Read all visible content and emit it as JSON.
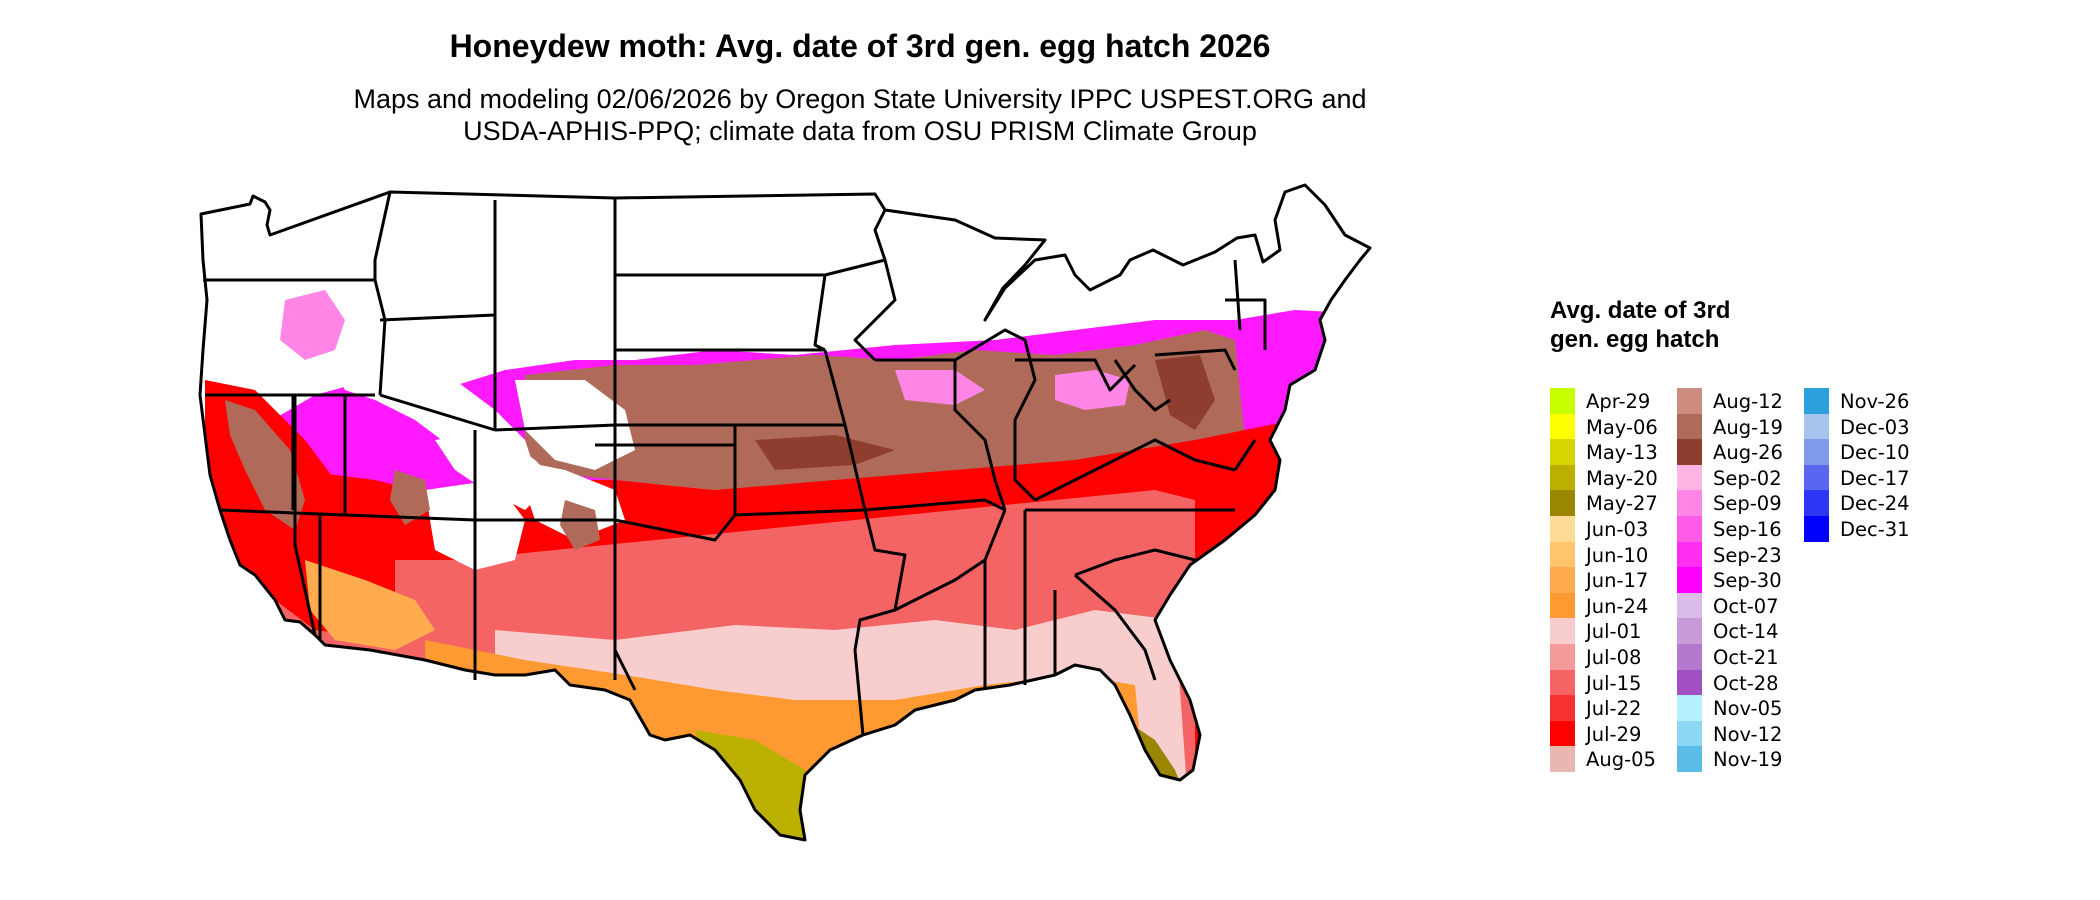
{
  "title": "Honeydew moth: Avg. date of 3rd gen. egg hatch 2026",
  "subtitle_line1": "Maps and modeling 02/06/2026 by Oregon State University IPPC USPEST.ORG and",
  "subtitle_line2": "USDA-APHIS-PPQ; climate data from OSU PRISM Climate Group",
  "legend": {
    "title": "Avg. date of 3rd gen. egg hatch",
    "items": [
      {
        "label": "Apr-29",
        "color": "#c8ff00"
      },
      {
        "label": "May-06",
        "color": "#ffff00"
      },
      {
        "label": "May-13",
        "color": "#d8d400"
      },
      {
        "label": "May-20",
        "color": "#bbaf00"
      },
      {
        "label": "May-27",
        "color": "#9a8600"
      },
      {
        "label": "Jun-03",
        "color": "#ffdc96"
      },
      {
        "label": "Jun-10",
        "color": "#ffc46c"
      },
      {
        "label": "Jun-17",
        "color": "#ffac4e"
      },
      {
        "label": "Jun-24",
        "color": "#ff9a32"
      },
      {
        "label": "Jul-01",
        "color": "#f7cdcd"
      },
      {
        "label": "Jul-08",
        "color": "#f49a9a"
      },
      {
        "label": "Jul-15",
        "color": "#f46464"
      },
      {
        "label": "Jul-22",
        "color": "#f63232"
      },
      {
        "label": "Jul-29",
        "color": "#ff0000"
      },
      {
        "label": "Aug-05",
        "color": "#e8b7b0"
      },
      {
        "label": "Aug-12",
        "color": "#cc8c80"
      },
      {
        "label": "Aug-19",
        "color": "#b06a5a"
      },
      {
        "label": "Aug-26",
        "color": "#8e3e2e"
      },
      {
        "label": "Sep-02",
        "color": "#ffb4e6"
      },
      {
        "label": "Sep-09",
        "color": "#ff86e6"
      },
      {
        "label": "Sep-16",
        "color": "#ff5ae6"
      },
      {
        "label": "Sep-23",
        "color": "#ff2ef0"
      },
      {
        "label": "Sep-30",
        "color": "#ff00ff"
      },
      {
        "label": "Oct-07",
        "color": "#dcbce8"
      },
      {
        "label": "Oct-14",
        "color": "#c89ad8"
      },
      {
        "label": "Oct-21",
        "color": "#b478cc"
      },
      {
        "label": "Oct-28",
        "color": "#a050c0"
      },
      {
        "label": "Nov-05",
        "color": "#b4f0ff"
      },
      {
        "label": "Nov-12",
        "color": "#8cd8f2"
      },
      {
        "label": "Nov-19",
        "color": "#5cbce8"
      },
      {
        "label": "Nov-26",
        "color": "#2ca0dc"
      },
      {
        "label": "Dec-03",
        "color": "#a6c4ec"
      },
      {
        "label": "Dec-10",
        "color": "#7e9aec"
      },
      {
        "label": "Dec-17",
        "color": "#5a66f0"
      },
      {
        "label": "Dec-24",
        "color": "#2e36f6"
      },
      {
        "label": "Dec-31",
        "color": "#0000ff"
      }
    ]
  }
}
